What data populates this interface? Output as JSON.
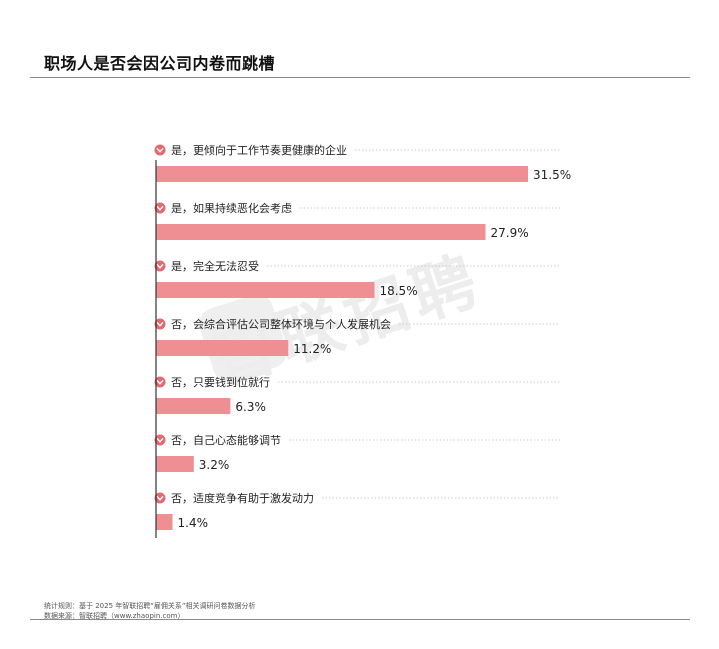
{
  "title": "职场人是否会因公司内卷而跳槽",
  "watermark": "智联招聘",
  "footer": {
    "rule_note": "统计规则：基于 2025 年智联招聘“雇佣关系”相关调研问卷数据分析",
    "source_note": "数据来源：智联招聘（www.zhaopin.com）"
  },
  "colors": {
    "bar": "#ef8f93",
    "icon": "#e46a72",
    "axis": "#333333"
  },
  "icons": [
    "heart-icon"
  ],
  "chart_data": {
    "type": "bar",
    "orientation": "horizontal",
    "categories": [
      "是，更倾向于工作节奏更健康的企业",
      "是，如果持续恶化会考虑",
      "是，完全无法忍受",
      "否，会综合评估公司整体环境与个人发展机会",
      "否，只要钱到位就行",
      "否，自己心态能够调节",
      "否，适度竞争有助于激发动力"
    ],
    "values": [
      31.5,
      27.9,
      18.5,
      11.2,
      6.3,
      3.2,
      1.4
    ],
    "value_labels": [
      "31.5%",
      "27.9%",
      "18.5%",
      "11.2%",
      "6.3%",
      "3.2%",
      "1.4%"
    ],
    "unit": "%"
  }
}
